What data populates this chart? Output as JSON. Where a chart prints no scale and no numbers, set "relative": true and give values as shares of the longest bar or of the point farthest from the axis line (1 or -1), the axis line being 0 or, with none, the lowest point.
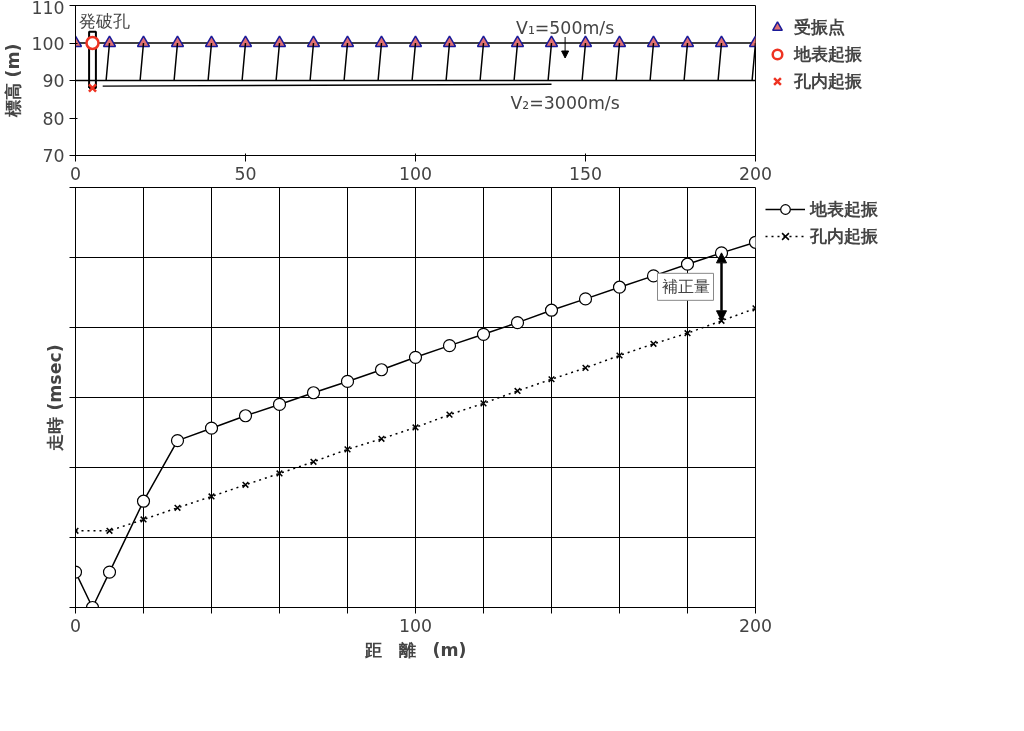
{
  "chart_data": [
    {
      "type": "scatter",
      "ylabel": "標高 (m)",
      "xlim": [
        0,
        200
      ],
      "xticks": [
        0,
        50,
        100,
        150,
        200
      ],
      "ylim": [
        70,
        110
      ],
      "yticks": [
        70,
        80,
        90,
        100,
        110
      ],
      "legend": "top right",
      "grid": false,
      "series": [
        {
          "name": "受振点",
          "type": "scatter",
          "marker": "triangle",
          "color": "#e07070",
          "x": [
            0,
            10,
            20,
            30,
            40,
            50,
            60,
            70,
            80,
            90,
            100,
            110,
            120,
            130,
            140,
            150,
            160,
            170,
            180,
            190,
            200
          ],
          "values": [
            100,
            100,
            100,
            100,
            100,
            100,
            100,
            100,
            100,
            100,
            100,
            100,
            100,
            100,
            100,
            100,
            100,
            100,
            100,
            100,
            100
          ]
        },
        {
          "name": "地表起振",
          "type": "scatter",
          "marker": "circle",
          "color": "#ee3322",
          "x": [
            5
          ],
          "values": [
            100
          ]
        },
        {
          "name": "孔内起振",
          "type": "scatter",
          "marker": "cross",
          "color": "#ee3322",
          "x": [
            5
          ],
          "values": [
            88
          ]
        },
        {
          "type": "line",
          "color": "#000000",
          "x": [
            8,
            140,
            null,
            9,
            10,
            null,
            19,
            20,
            null,
            29,
            30,
            null,
            39,
            40,
            null,
            49,
            50,
            null,
            59,
            60,
            null,
            69,
            70,
            null,
            79,
            80,
            null,
            89,
            90,
            null,
            99,
            100,
            null,
            109,
            110,
            null,
            119,
            120,
            null,
            129,
            130,
            null,
            139,
            140,
            null,
            149,
            150,
            null,
            159,
            160,
            null,
            169,
            170,
            null,
            179,
            180,
            null,
            189,
            190,
            null,
            199,
            200
          ],
          "values": [
            88.5,
            89,
            null,
            90,
            100,
            null,
            90,
            100,
            null,
            90,
            100,
            null,
            90,
            100,
            null,
            90,
            100,
            null,
            90,
            100,
            null,
            90,
            100,
            null,
            90,
            100,
            null,
            90,
            100,
            null,
            90,
            100,
            null,
            90,
            100,
            null,
            90,
            100,
            null,
            90,
            100,
            null,
            90,
            100,
            null,
            90,
            100,
            null,
            90,
            100,
            null,
            90,
            100,
            null,
            90,
            100,
            null,
            90,
            100,
            null,
            90,
            100
          ]
        }
      ],
      "ref_lines": [
        {
          "axis": "y",
          "value": 100,
          "color": "#000000"
        },
        {
          "axis": "y",
          "value": 90,
          "color": "#000000"
        }
      ],
      "annotations": [
        "発破孔",
        "V₁=500m/s",
        "V₂=3000m/s"
      ]
    },
    {
      "type": "line",
      "xlabel": "距　離　(m)",
      "ylabel": "走時 (msec)",
      "relative": true,
      "xlim": [
        0,
        200
      ],
      "xticks": [
        0,
        {
          "value": 20,
          "label": null
        },
        {
          "value": 40,
          "label": null
        },
        {
          "value": 60,
          "label": null
        },
        {
          "value": 80,
          "label": null
        },
        100,
        {
          "value": 120,
          "label": null
        },
        {
          "value": 140,
          "label": null
        },
        {
          "value": 160,
          "label": null
        },
        {
          "value": 180,
          "label": null
        },
        200
      ],
      "tick_labels": "x",
      "grid": true,
      "legend": "top right",
      "series": [
        {
          "name": "地表起振",
          "color": "#000000",
          "marker": "circle",
          "line_style": "solid",
          "x": [
            0,
            5,
            10,
            20,
            30,
            40,
            50,
            60,
            70,
            80,
            90,
            100,
            110,
            120,
            130,
            140,
            150,
            160,
            170,
            180,
            190,
            200
          ],
          "values": [
            0.097,
            0,
            0.097,
            0.291,
            0.457,
            0.491,
            0.525,
            0.556,
            0.588,
            0.619,
            0.651,
            0.685,
            0.717,
            0.748,
            0.78,
            0.814,
            0.845,
            0.877,
            0.908,
            0.94,
            0.971,
            1
          ]
        },
        {
          "name": "孔内起振",
          "color": "#000000",
          "marker": "cross",
          "line_style": "dotted",
          "x": [
            0,
            10,
            20,
            30,
            40,
            50,
            60,
            70,
            80,
            90,
            100,
            110,
            120,
            130,
            140,
            150,
            160,
            170,
            180,
            190,
            200
          ],
          "values": [
            0.21,
            0.21,
            0.241,
            0.273,
            0.304,
            0.336,
            0.367,
            0.399,
            0.433,
            0.462,
            0.493,
            0.528,
            0.559,
            0.593,
            0.625,
            0.656,
            0.69,
            0.722,
            0.751,
            0.785,
            0.819
          ]
        }
      ],
      "annotations": [
        "補正量"
      ]
    }
  ]
}
